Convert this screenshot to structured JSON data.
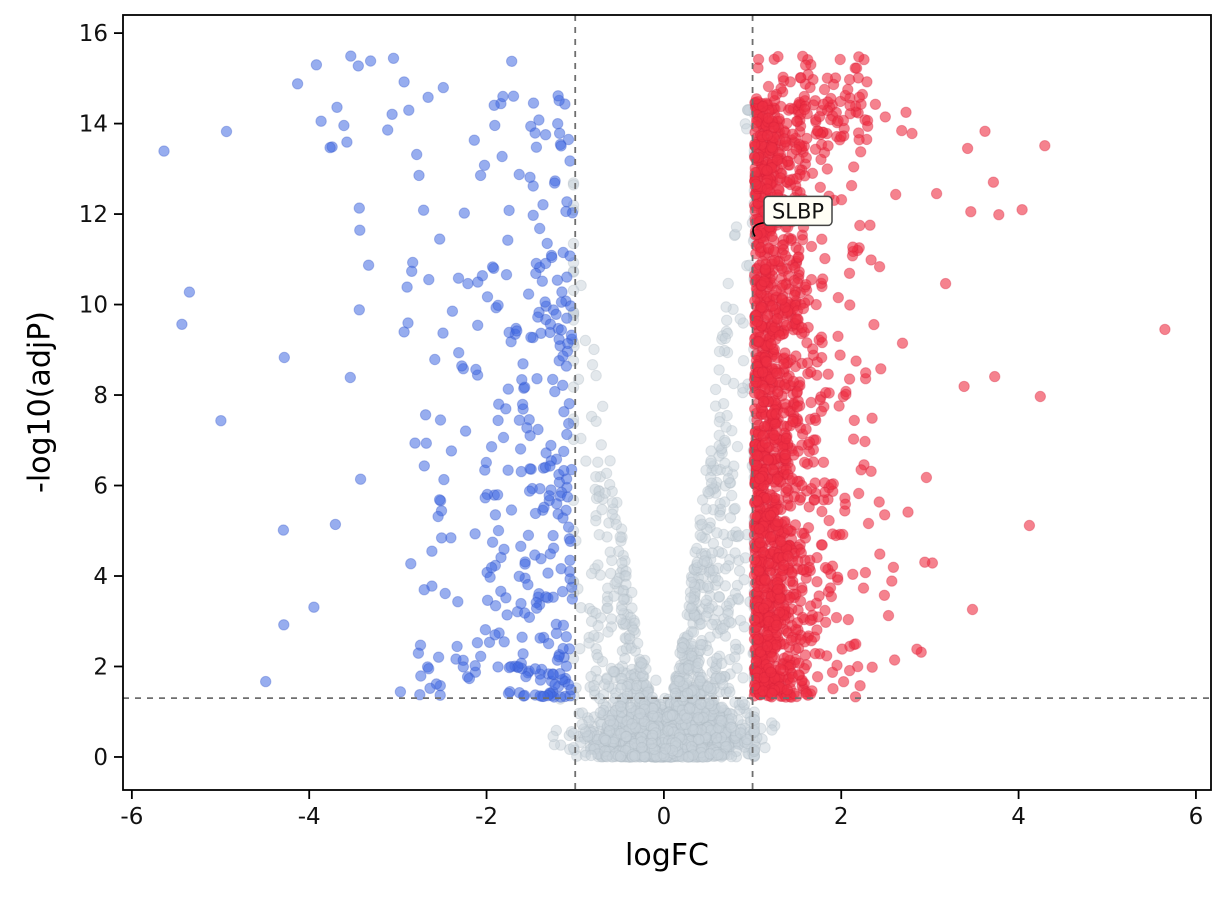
{
  "chart_data": {
    "type": "scatter",
    "subtype": "volcano-plot",
    "title": "",
    "xlabel": "logFC",
    "ylabel": "-log10(adjP)",
    "xlim": [
      -6.1,
      6.17
    ],
    "ylim": [
      -0.73,
      16.4
    ],
    "xticks": [
      -6,
      -4,
      -2,
      0,
      2,
      4,
      6
    ],
    "yticks": [
      0,
      2,
      4,
      6,
      8,
      10,
      12,
      14,
      16
    ],
    "grid": false,
    "legend": "none",
    "marker": {
      "shape": "circle",
      "radius_px": 5.2
    },
    "threshold_lines": {
      "style": "dashed",
      "color": "#6e6e6e",
      "vertical_logfc": [
        -1,
        1
      ],
      "horizontal_neglog10p": 1.3
    },
    "series": [
      {
        "name": "not-significant",
        "color": "#c7d2da",
        "edge": "#aebac4",
        "opacity": 0.5
      },
      {
        "name": "down-regulated",
        "color": "#4169e1",
        "edge": "#3355c8",
        "opacity": 0.55
      },
      {
        "name": "up-regulated",
        "color": "#ee2f43",
        "edge": "#d61f38",
        "opacity": 0.6
      }
    ],
    "generation": {
      "seed": 20240607,
      "clusters": [
        {
          "series": "not-significant",
          "kind": "base",
          "n": 1300,
          "x_mean": 0.05,
          "x_sd": 0.38,
          "x_clip": [
            -1.25,
            1.25
          ],
          "y_abs_sd": 0.45,
          "y_add": 0.25
        },
        {
          "series": "not-significant",
          "kind": "funnel",
          "n": 1500,
          "x_mean": 0.1,
          "x_sd": 0.52,
          "x_clip": [
            -1.02,
            1.02
          ],
          "y_base": 0.8,
          "y_scale": 15.4,
          "y_pow_x": 1.35,
          "y_pow_u": 1.8,
          "left_damp": 0.78,
          "y_cap": 14.3
        },
        {
          "series": "down-regulated",
          "kind": "tail-left",
          "n": 360,
          "x_start": -1.03,
          "x_exp_mean": 0.78,
          "x_min": -5.65,
          "y_base": 1.32,
          "y_scale": 13.3,
          "y_pow_u": 1.7
        },
        {
          "series": "down-regulated",
          "kind": "uniform-box",
          "n": 14,
          "x_range": [
            -5.45,
            -1.5
          ],
          "y_range": [
            13.3,
            15.5
          ]
        },
        {
          "series": "up-regulated",
          "kind": "tail-right",
          "n": 1600,
          "x_start": 1.02,
          "x_exp_mean": 0.3,
          "x_max": 4.35,
          "y_base": 1.32,
          "y_scale": 13.2,
          "y_pow_u": 1.25
        },
        {
          "series": "up-regulated",
          "kind": "uniform-box",
          "n": 90,
          "x_range": [
            1.04,
            2.3
          ],
          "y_range": [
            13.4,
            15.5
          ]
        },
        {
          "series": "up-regulated",
          "kind": "uniform-box",
          "n": 25,
          "x_range": [
            2.3,
            4.3
          ],
          "y_range": [
            2.0,
            14.8
          ]
        }
      ]
    },
    "explicit_points": [
      {
        "series": "up-regulated",
        "x": 5.65,
        "y": 9.45,
        "note": "far-right outlier"
      }
    ],
    "annotation": {
      "text": "SLBP",
      "point_x": 1.05,
      "point_y": 11.55,
      "box_fill": "#fffef5",
      "box_edge": "#444444"
    }
  }
}
